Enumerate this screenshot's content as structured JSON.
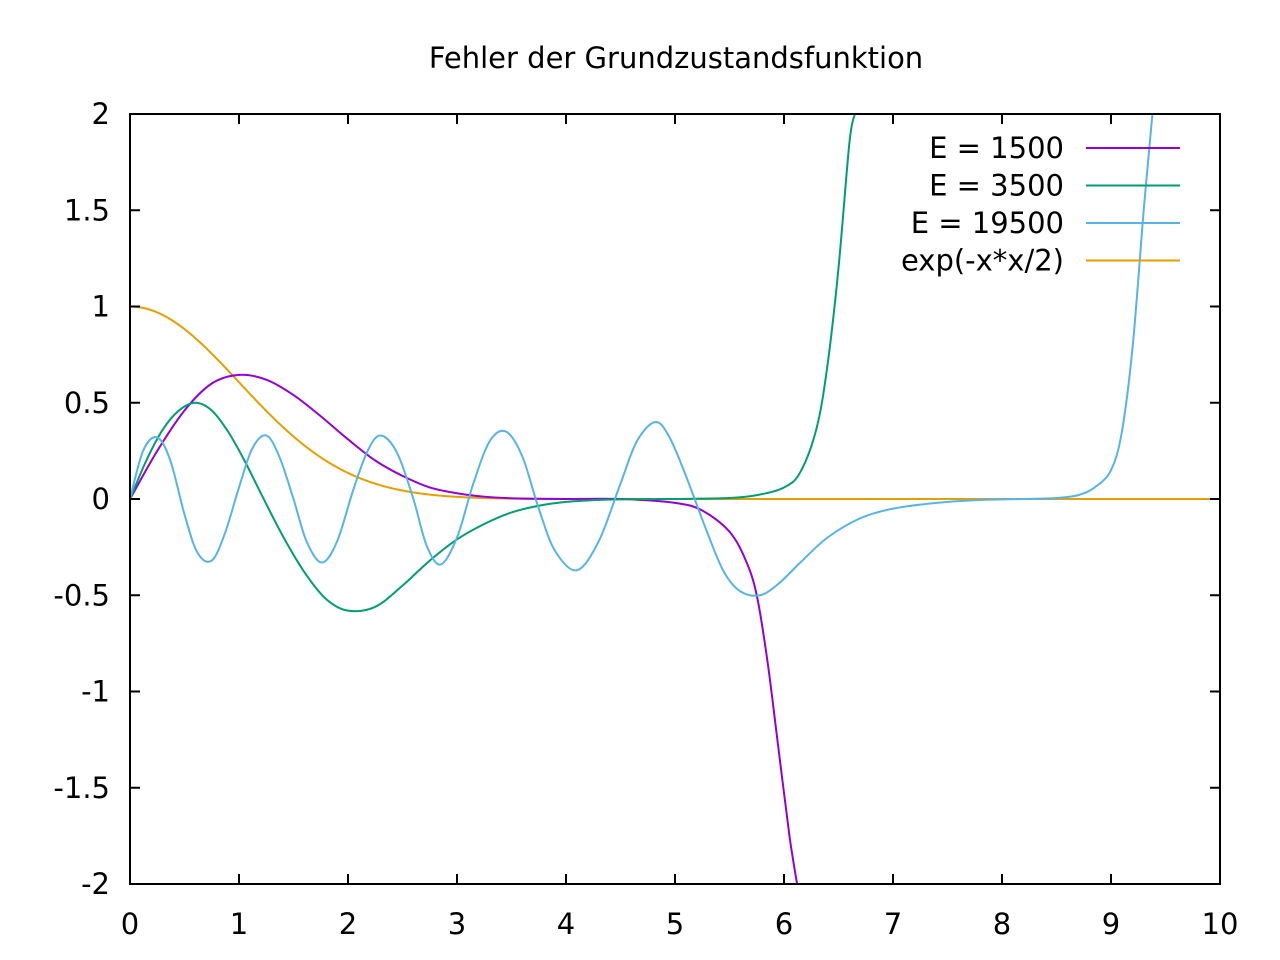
{
  "chart_data": {
    "type": "line",
    "title": "Fehler der Grundzustandsfunktion",
    "xlabel": "",
    "ylabel": "",
    "xlim": [
      0,
      10
    ],
    "ylim": [
      -2,
      2
    ],
    "x_ticks": [
      0,
      1,
      2,
      3,
      4,
      5,
      6,
      7,
      8,
      9,
      10
    ],
    "x_tick_labels": [
      "0",
      "1",
      "2",
      "3",
      "4",
      "5",
      "6",
      "7",
      "8",
      "9",
      "10"
    ],
    "y_ticks": [
      -2,
      -1.5,
      -1,
      -0.5,
      0,
      0.5,
      1,
      1.5,
      2
    ],
    "y_tick_labels": [
      "-2",
      "-1.5",
      "-1",
      "-0.5",
      "0",
      "0.5",
      "1",
      "1.5",
      "2"
    ],
    "grid": false,
    "legend_position": "top-right",
    "series": [
      {
        "name": "E = 1500",
        "color": "#9400d3",
        "x": [
          0,
          0.25,
          0.5,
          0.75,
          1.0,
          1.25,
          1.5,
          1.75,
          2.0,
          2.25,
          2.5,
          2.75,
          3.0,
          3.25,
          3.5,
          3.75,
          4.0,
          4.5,
          5.0,
          5.25,
          5.5,
          5.65,
          5.75,
          5.85,
          5.95,
          6.05,
          6.12
        ],
        "y": [
          0,
          0.25,
          0.46,
          0.6,
          0.645,
          0.62,
          0.54,
          0.43,
          0.31,
          0.2,
          0.12,
          0.06,
          0.03,
          0.012,
          0.004,
          0.001,
          0,
          0,
          -0.02,
          -0.06,
          -0.17,
          -0.32,
          -0.5,
          -0.85,
          -1.3,
          -1.75,
          -2
        ]
      },
      {
        "name": "E = 3500",
        "color": "#009e73",
        "x": [
          0,
          0.15,
          0.3,
          0.45,
          0.6,
          0.75,
          0.9,
          1.05,
          1.2,
          1.4,
          1.6,
          1.8,
          2.0,
          2.25,
          2.5,
          2.75,
          3.0,
          3.25,
          3.5,
          3.75,
          4.0,
          4.25,
          4.5,
          5.0,
          5.5,
          5.75,
          6.0,
          6.15,
          6.3,
          6.4,
          6.5,
          6.6,
          6.65
        ],
        "y": [
          0,
          0.2,
          0.36,
          0.46,
          0.5,
          0.46,
          0.35,
          0.2,
          0.03,
          -0.19,
          -0.38,
          -0.52,
          -0.58,
          -0.56,
          -0.45,
          -0.32,
          -0.21,
          -0.13,
          -0.07,
          -0.035,
          -0.015,
          -0.006,
          -0.002,
          0,
          0.005,
          0.02,
          0.06,
          0.14,
          0.37,
          0.7,
          1.2,
          1.85,
          2
        ]
      },
      {
        "name": "E = 19500",
        "color": "#56b4e9",
        "x": [
          0,
          0.12,
          0.25,
          0.37,
          0.5,
          0.62,
          0.75,
          0.87,
          1.0,
          1.12,
          1.25,
          1.37,
          1.5,
          1.62,
          1.76,
          1.9,
          2.05,
          2.18,
          2.3,
          2.45,
          2.6,
          2.72,
          2.85,
          3.0,
          3.15,
          3.3,
          3.45,
          3.6,
          3.75,
          3.9,
          4.1,
          4.3,
          4.5,
          4.65,
          4.82,
          4.95,
          5.1,
          5.3,
          5.45,
          5.6,
          5.78,
          5.95,
          6.15,
          6.4,
          6.7,
          7.0,
          7.4,
          7.8,
          8.2,
          8.5,
          8.7,
          8.85,
          9.0,
          9.1,
          9.2,
          9.3,
          9.38
        ],
        "y": [
          0,
          0.25,
          0.32,
          0.2,
          -0.08,
          -0.28,
          -0.32,
          -0.18,
          0.06,
          0.26,
          0.33,
          0.22,
          0.0,
          -0.22,
          -0.33,
          -0.22,
          0.05,
          0.25,
          0.33,
          0.24,
          0.0,
          -0.24,
          -0.34,
          -0.2,
          0.08,
          0.3,
          0.35,
          0.22,
          -0.05,
          -0.27,
          -0.37,
          -0.22,
          0.08,
          0.3,
          0.4,
          0.32,
          0.12,
          -0.18,
          -0.38,
          -0.48,
          -0.5,
          -0.44,
          -0.33,
          -0.2,
          -0.1,
          -0.05,
          -0.02,
          -0.005,
          0,
          0.005,
          0.02,
          0.06,
          0.15,
          0.35,
          0.8,
          1.5,
          2
        ]
      },
      {
        "name": "exp(-x*x/2)",
        "color": "#e69f00",
        "function": "exp(-x*x/2)"
      }
    ]
  }
}
